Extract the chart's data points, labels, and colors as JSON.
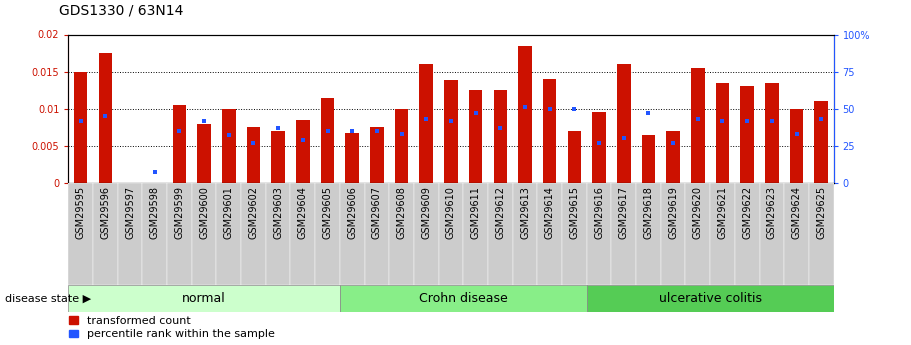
{
  "title": "GDS1330 / 63N14",
  "samples": [
    "GSM29595",
    "GSM29596",
    "GSM29597",
    "GSM29598",
    "GSM29599",
    "GSM29600",
    "GSM29601",
    "GSM29602",
    "GSM29603",
    "GSM29604",
    "GSM29605",
    "GSM29606",
    "GSM29607",
    "GSM29608",
    "GSM29609",
    "GSM29610",
    "GSM29611",
    "GSM29612",
    "GSM29613",
    "GSM29614",
    "GSM29615",
    "GSM29616",
    "GSM29617",
    "GSM29618",
    "GSM29619",
    "GSM29620",
    "GSM29621",
    "GSM29622",
    "GSM29623",
    "GSM29624",
    "GSM29625"
  ],
  "transformed_count": [
    0.015,
    0.0175,
    0.0,
    0.0,
    0.0105,
    0.008,
    0.01,
    0.0075,
    0.007,
    0.0085,
    0.0115,
    0.0067,
    0.0075,
    0.01,
    0.016,
    0.0138,
    0.0125,
    0.0125,
    0.0185,
    0.014,
    0.007,
    0.0095,
    0.016,
    0.0065,
    0.007,
    0.0155,
    0.0135,
    0.013,
    0.0135,
    0.01,
    0.011
  ],
  "percentile_rank": [
    42,
    45,
    0,
    7,
    35,
    42,
    32,
    27,
    37,
    29,
    35,
    35,
    35,
    33,
    43,
    42,
    47,
    37,
    51,
    50,
    50,
    27,
    30,
    47,
    27,
    43,
    42,
    42,
    42,
    33,
    43
  ],
  "groups": [
    {
      "label": "normal",
      "start": 0,
      "end": 11,
      "color": "#ccffcc"
    },
    {
      "label": "Crohn disease",
      "start": 11,
      "end": 21,
      "color": "#88ee88"
    },
    {
      "label": "ulcerative colitis",
      "start": 21,
      "end": 31,
      "color": "#55cc55"
    }
  ],
  "bar_color": "#cc1100",
  "blue_color": "#2255ff",
  "ylim_left": [
    0,
    0.02
  ],
  "ylim_right": [
    0,
    100
  ],
  "yticks_left": [
    0,
    0.005,
    0.01,
    0.015,
    0.02
  ],
  "ytick_labels_left": [
    "0",
    "0.005",
    "0.01",
    "0.015",
    "0.02"
  ],
  "yticks_right": [
    0,
    25,
    50,
    75,
    100
  ],
  "ytick_labels_right": [
    "0",
    "25",
    "50",
    "75",
    "100%"
  ],
  "bar_width": 0.55,
  "title_fontsize": 10,
  "tick_fontsize": 7,
  "legend_fontsize": 8,
  "group_label_fontsize": 9,
  "disease_label": "disease state"
}
